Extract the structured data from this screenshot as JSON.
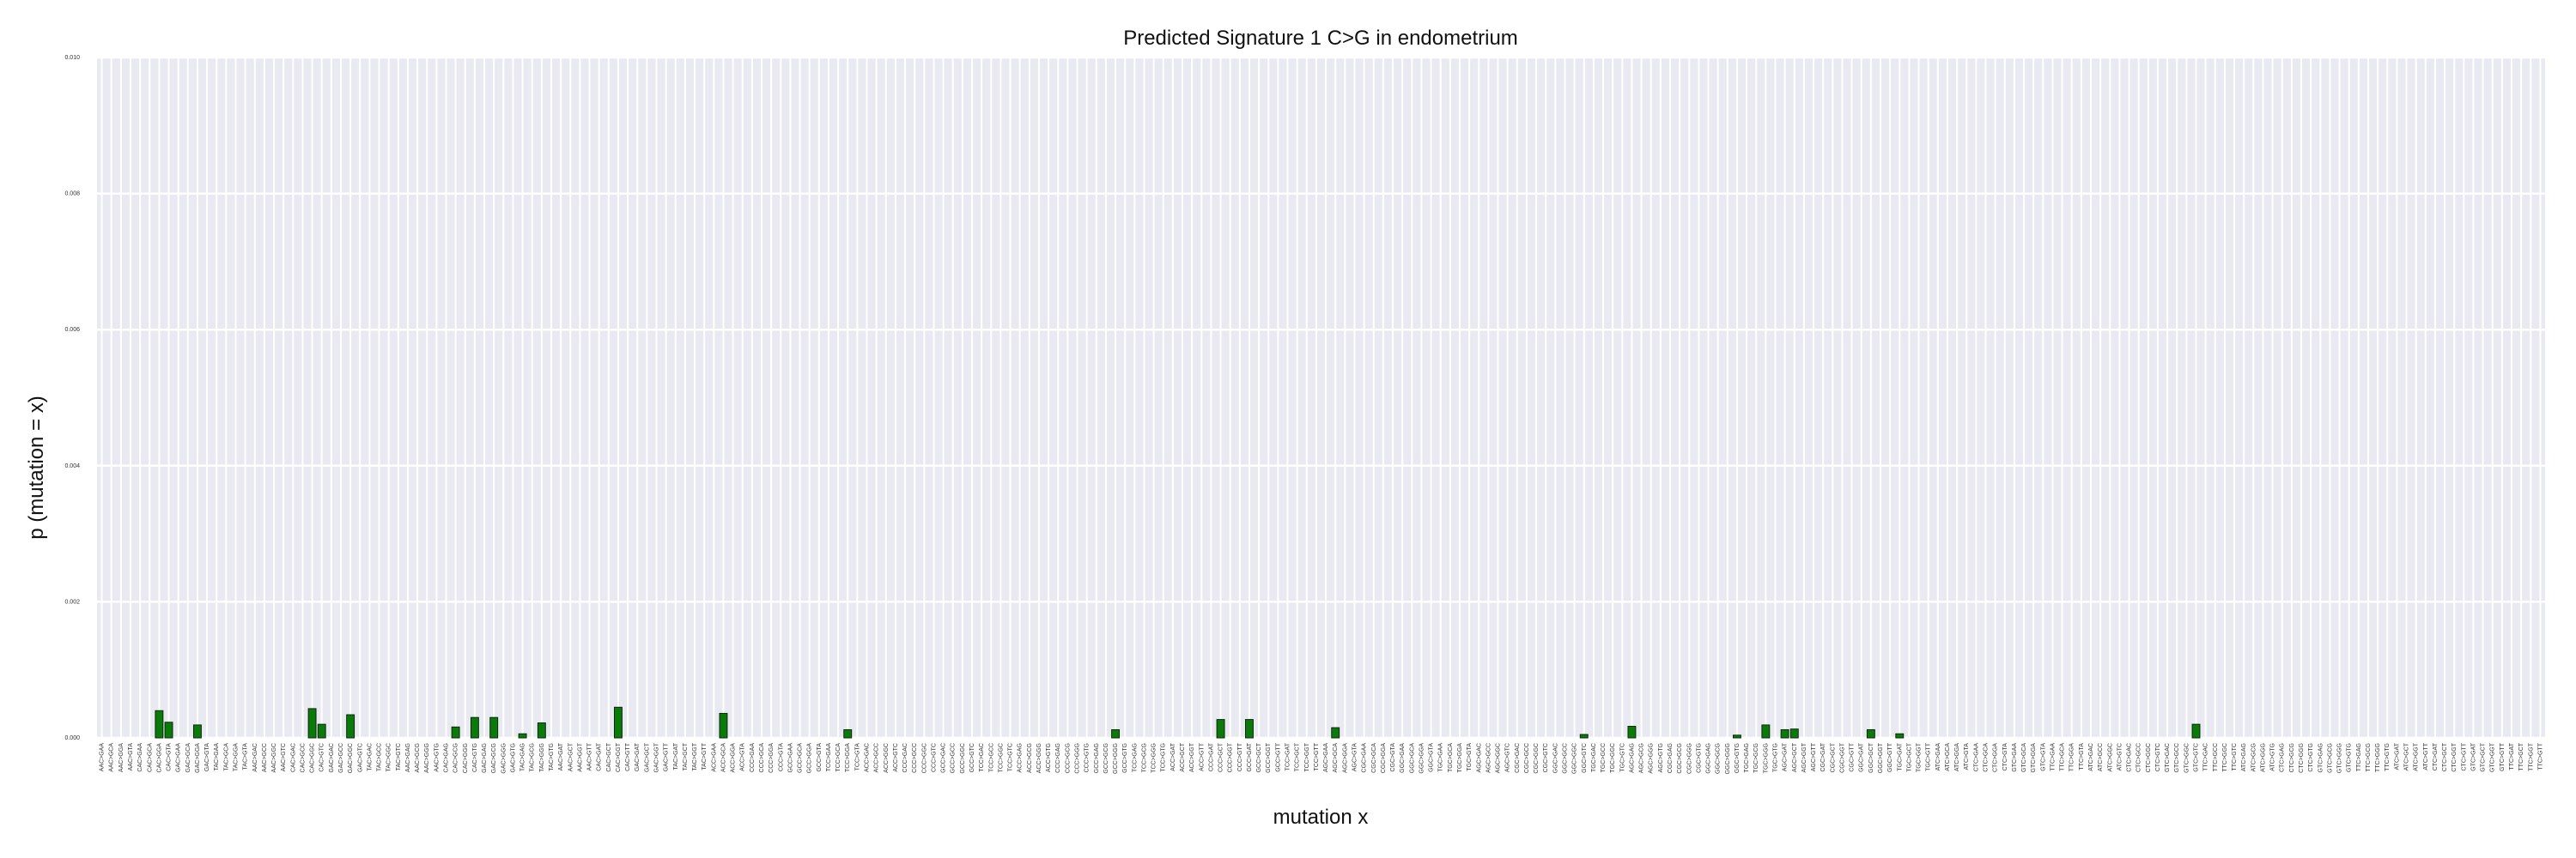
{
  "chart_data": {
    "type": "bar",
    "title": "Predicted Signature 1 C>G in endometrium",
    "xlabel": "mutation x",
    "ylabel": "p (mutation = x)",
    "ylim": [
      0,
      0.01
    ],
    "yticks": [
      "0.000",
      "0.002",
      "0.004",
      "0.006",
      "0.008",
      "0.010"
    ],
    "grid": true,
    "colors": {
      "bar": "#0a7a0a",
      "bar_edge": "#0a2a0a",
      "plot_bg": "#e9e9f1",
      "grid": "#ffffff"
    },
    "categories": [
      "AAC>GAA",
      "AAC>GCA",
      "AAC>GGA",
      "AAC>GTA",
      "CAC>GAA",
      "CAC>GCA",
      "CAC>GGA",
      "CAC>GTA",
      "GAC>GAA",
      "GAC>GCA",
      "GAC>GGA",
      "GAC>GTA",
      "TAC>GAA",
      "TAC>GCA",
      "TAC>GGA",
      "TAC>GTA",
      "AAC>GAC",
      "AAC>GCC",
      "AAC>GGC",
      "AAC>GTC",
      "CAC>GAC",
      "CAC>GCC",
      "CAC>GGC",
      "CAC>GTC",
      "GAC>GAC",
      "GAC>GCC",
      "GAC>GGC",
      "GAC>GTC",
      "TAC>GAC",
      "TAC>GCC",
      "TAC>GGC",
      "TAC>GTC",
      "AAC>GAG",
      "AAC>GCG",
      "AAC>GGG",
      "AAC>GTG",
      "CAC>GAG",
      "CAC>GCG",
      "CAC>GGG",
      "CAC>GTG",
      "GAC>GAG",
      "GAC>GCG",
      "GAC>GGG",
      "GAC>GTG",
      "TAC>GAG",
      "TAC>GCG",
      "TAC>GGG",
      "TAC>GTG",
      "AAC>GAT",
      "AAC>GCT",
      "AAC>GGT",
      "AAC>GTT",
      "CAC>GAT",
      "CAC>GCT",
      "CAC>GGT",
      "CAC>GTT",
      "GAC>GAT",
      "GAC>GCT",
      "GAC>GGT",
      "GAC>GTT",
      "TAC>GAT",
      "TAC>GCT",
      "TAC>GGT",
      "TAC>GTT",
      "ACC>GAA",
      "ACC>GCA",
      "ACC>GGA",
      "ACC>GTA",
      "CCC>GAA",
      "CCC>GCA",
      "CCC>GGA",
      "CCC>GTA",
      "GCC>GAA",
      "GCC>GCA",
      "GCC>GGA",
      "GCC>GTA",
      "TCC>GAA",
      "TCC>GCA",
      "TCC>GGA",
      "TCC>GTA",
      "ACC>GAC",
      "ACC>GCC",
      "ACC>GGC",
      "ACC>GTC",
      "CCC>GAC",
      "CCC>GCC",
      "CCC>GGC",
      "CCC>GTC",
      "GCC>GAC",
      "GCC>GCC",
      "GCC>GGC",
      "GCC>GTC",
      "TCC>GAC",
      "TCC>GCC",
      "TCC>GGC",
      "TCC>GTC",
      "ACC>GAG",
      "ACC>GCG",
      "ACC>GGG",
      "ACC>GTG",
      "CCC>GAG",
      "CCC>GCG",
      "CCC>GGG",
      "CCC>GTG",
      "GCC>GAG",
      "GCC>GCG",
      "GCC>GGG",
      "GCC>GTG",
      "TCC>GAG",
      "TCC>GCG",
      "TCC>GGG",
      "TCC>GTG",
      "ACC>GAT",
      "ACC>GCT",
      "ACC>GGT",
      "ACC>GTT",
      "CCC>GAT",
      "CCC>GCT",
      "CCC>GGT",
      "CCC>GTT",
      "GCC>GAT",
      "GCC>GCT",
      "GCC>GGT",
      "GCC>GTT",
      "TCC>GAT",
      "TCC>GCT",
      "TCC>GGT",
      "TCC>GTT",
      "AGC>GAA",
      "AGC>GCA",
      "AGC>GGA",
      "AGC>GTA",
      "CGC>GAA",
      "CGC>GCA",
      "CGC>GGA",
      "CGC>GTA",
      "GGC>GAA",
      "GGC>GCA",
      "GGC>GGA",
      "GGC>GTA",
      "TGC>GAA",
      "TGC>GCA",
      "TGC>GGA",
      "TGC>GTA",
      "AGC>GAC",
      "AGC>GCC",
      "AGC>GGC",
      "AGC>GTC",
      "CGC>GAC",
      "CGC>GCC",
      "CGC>GGC",
      "CGC>GTC",
      "GGC>GAC",
      "GGC>GCC",
      "GGC>GGC",
      "GGC>GTC",
      "TGC>GAC",
      "TGC>GCC",
      "TGC>GGC",
      "TGC>GTC",
      "AGC>GAG",
      "AGC>GCG",
      "AGC>GGG",
      "AGC>GTG",
      "CGC>GAG",
      "CGC>GCG",
      "CGC>GGG",
      "CGC>GTG",
      "GGC>GAG",
      "GGC>GCG",
      "GGC>GGG",
      "GGC>GTG",
      "TGC>GAG",
      "TGC>GCG",
      "TGC>GGG",
      "TGC>GTG",
      "AGC>GAT",
      "AGC>GCT",
      "AGC>GGT",
      "AGC>GTT",
      "CGC>GAT",
      "CGC>GCT",
      "CGC>GGT",
      "CGC>GTT",
      "GGC>GAT",
      "GGC>GCT",
      "GGC>GGT",
      "GGC>GTT",
      "TGC>GAT",
      "TGC>GCT",
      "TGC>GGT",
      "TGC>GTT",
      "ATC>GAA",
      "ATC>GCA",
      "ATC>GGA",
      "ATC>GTA",
      "CTC>GAA",
      "CTC>GCA",
      "CTC>GGA",
      "CTC>GTA",
      "GTC>GAA",
      "GTC>GCA",
      "GTC>GGA",
      "GTC>GTA",
      "TTC>GAA",
      "TTC>GCA",
      "TTC>GGA",
      "TTC>GTA",
      "ATC>GAC",
      "ATC>GCC",
      "ATC>GGC",
      "ATC>GTC",
      "CTC>GAC",
      "CTC>GCC",
      "CTC>GGC",
      "CTC>GTC",
      "GTC>GAC",
      "GTC>GCC",
      "GTC>GGC",
      "GTC>GTC",
      "TTC>GAC",
      "TTC>GCC",
      "TTC>GGC",
      "TTC>GTC",
      "ATC>GAG",
      "ATC>GCG",
      "ATC>GGG",
      "ATC>GTG",
      "CTC>GAG",
      "CTC>GCG",
      "CTC>GGG",
      "CTC>GTG",
      "GTC>GAG",
      "GTC>GCG",
      "GTC>GGG",
      "GTC>GTG",
      "TTC>GAG",
      "TTC>GCG",
      "TTC>GGG",
      "TTC>GTG",
      "ATC>GAT",
      "ATC>GCT",
      "ATC>GGT",
      "ATC>GTT",
      "CTC>GAT",
      "CTC>GCT",
      "CTC>GGT",
      "CTC>GTT",
      "GTC>GAT",
      "GTC>GCT",
      "GTC>GGT",
      "GTC>GTT",
      "TTC>GAT",
      "TTC>GCT",
      "TTC>GGT",
      "TTC>GTT"
    ],
    "values": [
      0,
      0,
      0,
      0,
      0,
      0,
      0.0004,
      0.00023,
      0,
      0,
      0.00019,
      0,
      0,
      0,
      0,
      0,
      0,
      0,
      0,
      0,
      0,
      0,
      0.00043,
      0.0002,
      0,
      0,
      0.00034,
      0,
      0,
      0,
      0,
      0,
      0,
      0,
      0,
      0,
      0,
      0.00016,
      0,
      0.0003,
      0,
      0.0003,
      0,
      0,
      6e-05,
      0,
      0.00022,
      0,
      0,
      0,
      0,
      0,
      0,
      0,
      0.00045,
      0,
      0,
      0,
      0,
      0,
      0,
      0,
      0,
      0,
      0,
      0.00036,
      0,
      0,
      0,
      0,
      0,
      0,
      0,
      0,
      0,
      0,
      0,
      0,
      0.00012,
      0,
      0,
      0,
      0,
      0,
      0,
      0,
      0,
      0,
      0,
      0,
      0,
      0,
      0,
      0,
      0,
      0,
      0,
      0,
      0,
      0,
      0,
      0,
      0,
      0,
      0,
      0,
      0.00012,
      0,
      0,
      0,
      0,
      0,
      0,
      0,
      0,
      0,
      0,
      0.00027,
      0,
      0,
      0.00027,
      0,
      0,
      0,
      0,
      0,
      0,
      0,
      0,
      0.00015,
      0,
      0,
      0,
      0,
      0,
      0,
      0,
      0,
      0,
      0,
      0,
      0,
      0,
      0,
      0,
      0,
      0,
      0,
      0,
      0,
      0,
      0,
      0,
      0,
      0,
      5e-05,
      0,
      0,
      0,
      0,
      0.00017,
      0,
      0,
      0,
      0,
      0,
      0,
      0,
      0,
      0,
      0,
      4e-05,
      0,
      0,
      0.00019,
      0,
      0.00012,
      0.00013,
      0,
      0,
      0,
      0,
      0,
      0,
      0,
      0.00012,
      0,
      0,
      6e-05,
      0,
      0,
      0,
      0,
      0,
      0,
      0,
      0,
      0,
      0,
      0,
      0,
      0,
      0,
      0,
      0,
      0,
      0,
      0,
      0,
      0,
      0,
      0,
      0,
      0,
      0,
      0,
      0,
      0,
      0,
      0.0002,
      0,
      0,
      0,
      0,
      0,
      0,
      0,
      0,
      0,
      0,
      0,
      0,
      0,
      0,
      0,
      0,
      0,
      0,
      0,
      0,
      0,
      0,
      0,
      0,
      0,
      0,
      0,
      0,
      0,
      0,
      0,
      0,
      0,
      0,
      0,
      0
    ]
  }
}
